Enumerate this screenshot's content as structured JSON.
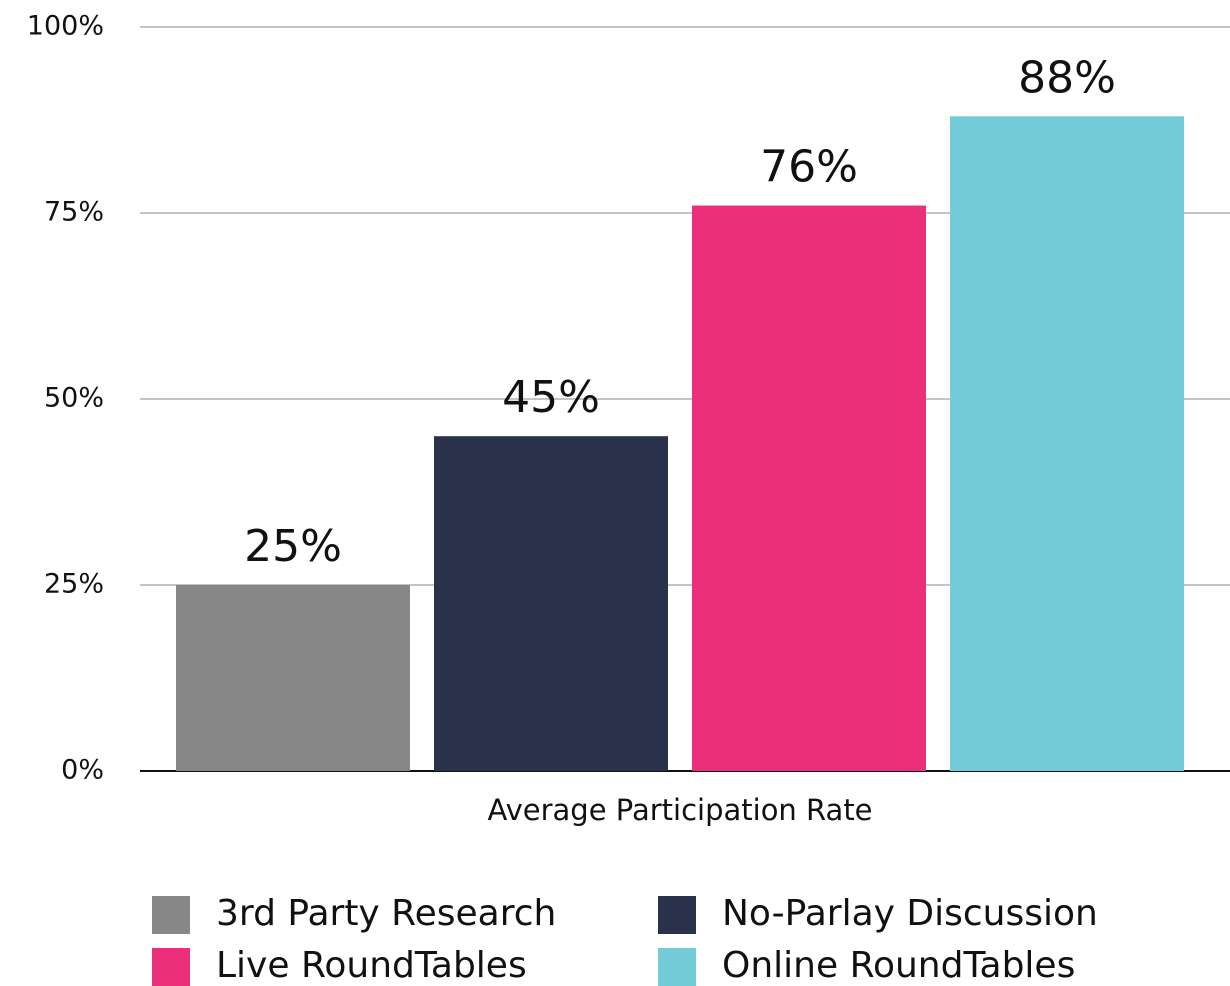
{
  "chart_data": {
    "type": "bar",
    "categories": [
      "Average Participation Rate"
    ],
    "series": [
      {
        "name": "3rd Party Research",
        "color": "#878787",
        "values": [
          25
        ],
        "value_labels": [
          "25%"
        ]
      },
      {
        "name": "No-Parlay Discussion",
        "color": "#29324a",
        "values": [
          45
        ],
        "value_labels": [
          "45%"
        ]
      },
      {
        "name": "Live RoundTables",
        "color": "#ec2f7b",
        "values": [
          76
        ],
        "value_labels": [
          "76%"
        ]
      },
      {
        "name": "Online RoundTables",
        "color": "#74ccd8",
        "values": [
          88
        ],
        "value_labels": [
          "88%"
        ]
      }
    ],
    "ylim": [
      0,
      100
    ],
    "yticks": [
      {
        "value": 0,
        "label": "0%"
      },
      {
        "value": 25,
        "label": "25%"
      },
      {
        "value": 50,
        "label": "50%"
      },
      {
        "value": 75,
        "label": "75%"
      },
      {
        "value": 100,
        "label": "100%"
      }
    ],
    "grid": true,
    "legend": "bottom"
  }
}
